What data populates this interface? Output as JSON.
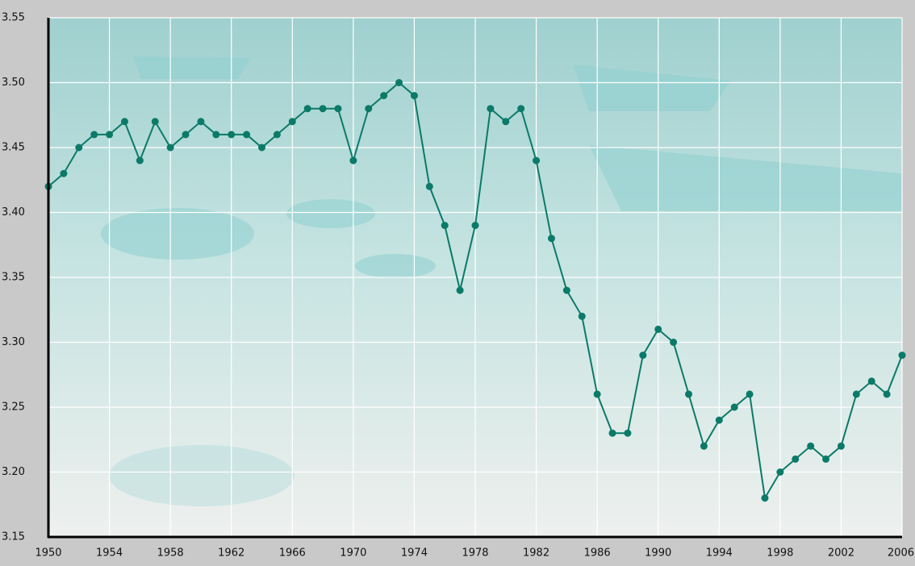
{
  "chart_data": {
    "type": "line",
    "x": [
      1950,
      1951,
      1952,
      1953,
      1954,
      1955,
      1956,
      1957,
      1958,
      1959,
      1960,
      1961,
      1962,
      1963,
      1964,
      1965,
      1966,
      1967,
      1968,
      1969,
      1970,
      1971,
      1972,
      1973,
      1974,
      1975,
      1976,
      1977,
      1978,
      1979,
      1980,
      1981,
      1982,
      1983,
      1984,
      1985,
      1986,
      1987,
      1988,
      1989,
      1990,
      1991,
      1992,
      1993,
      1994,
      1995,
      1996,
      1997,
      1998,
      1999,
      2000,
      2001,
      2002,
      2003,
      2004,
      2005,
      2006
    ],
    "values": [
      3.42,
      3.43,
      3.45,
      3.46,
      3.46,
      3.47,
      3.44,
      3.47,
      3.45,
      3.46,
      3.47,
      3.46,
      3.46,
      3.46,
      3.45,
      3.46,
      3.47,
      3.48,
      3.48,
      3.48,
      3.44,
      3.48,
      3.49,
      3.5,
      3.49,
      3.42,
      3.39,
      3.34,
      3.39,
      3.48,
      3.47,
      3.48,
      3.44,
      3.38,
      3.34,
      3.32,
      3.26,
      3.23,
      3.23,
      3.29,
      3.31,
      3.3,
      3.26,
      3.22,
      3.24,
      3.25,
      3.26,
      3.18,
      3.2,
      3.21,
      3.22,
      3.21,
      3.22,
      3.26,
      3.27,
      3.26,
      3.29
    ],
    "color": "#0b7a68",
    "xlim": [
      1950,
      2006
    ],
    "xticks": [
      1950,
      1954,
      1958,
      1962,
      1966,
      1970,
      1974,
      1978,
      1982,
      1986,
      1990,
      1994,
      1998,
      2002,
      2006
    ],
    "ylim": [
      3.15,
      3.55
    ],
    "yticks": [
      3.15,
      {
        "value": 3.2,
        "label": "3.20"
      },
      3.25,
      {
        "value": 3.3,
        "label": "3.30"
      },
      3.35,
      {
        "value": 3.4,
        "label": "3.40"
      },
      3.45,
      {
        "value": 3.5,
        "label": "3.50"
      },
      3.55
    ],
    "grid": true
  }
}
